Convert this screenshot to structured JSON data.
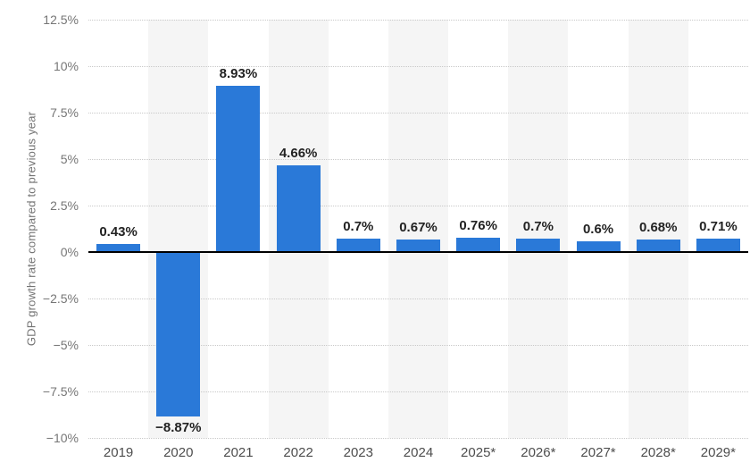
{
  "chart_data": {
    "type": "bar",
    "title": "",
    "xlabel": "",
    "ylabel": "GDP growth rate compared to previous year",
    "categories": [
      "2019",
      "2020",
      "2021",
      "2022",
      "2023",
      "2024",
      "2025*",
      "2026*",
      "2027*",
      "2028*",
      "2029*"
    ],
    "values": [
      0.43,
      -8.87,
      8.93,
      4.66,
      0.7,
      0.67,
      0.76,
      0.7,
      0.6,
      0.68,
      0.71
    ],
    "value_labels": [
      "0.43%",
      "−8.87%",
      "8.93%",
      "4.66%",
      "0.7%",
      "0.67%",
      "0.76%",
      "0.7%",
      "0.6%",
      "0.68%",
      "0.71%"
    ],
    "ylim": [
      -10,
      12.5
    ],
    "yticks": [
      {
        "value": 12.5,
        "label": "12.5%"
      },
      {
        "value": 10,
        "label": "10%"
      },
      {
        "value": 7.5,
        "label": "7.5%"
      },
      {
        "value": 5,
        "label": "5%"
      },
      {
        "value": 2.5,
        "label": "2.5%"
      },
      {
        "value": 0,
        "label": "0%"
      },
      {
        "value": -2.5,
        "label": "−2.5%"
      },
      {
        "value": -5,
        "label": "−5%"
      },
      {
        "value": -7.5,
        "label": "−7.5%"
      },
      {
        "value": -10,
        "label": "−10%"
      }
    ],
    "grid": "horizontal-dotted",
    "legend": "none",
    "stripe_pattern": "alternating-columns-odd",
    "colors": {
      "bar": "#2a79d8",
      "stripe": "#f5f5f5",
      "grid": "#c9c9c9",
      "zero_line": "#000000",
      "value_label": "#222222",
      "x_tick_label": "#4d4d4d",
      "y_tick_label": "#767676",
      "y_axis_title": "#737373",
      "background": "#ffffff"
    }
  }
}
